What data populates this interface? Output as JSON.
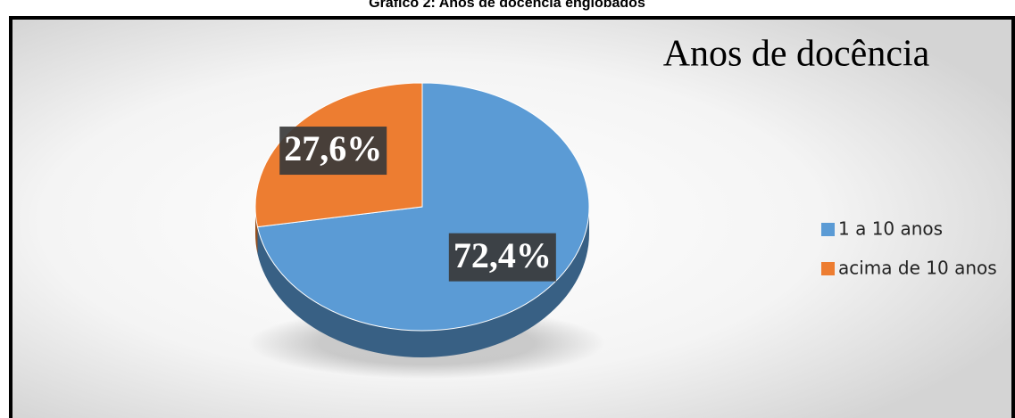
{
  "caption": "Gráfico 2: Anos de docência englobados",
  "chart_data": {
    "type": "pie",
    "title": "Anos de docência",
    "categories": [
      "1 a 10 anos",
      "acima de 10 anos"
    ],
    "values": [
      72.4,
      27.6
    ],
    "value_labels": [
      "72,4%",
      "27,6%"
    ],
    "colors": [
      "#5b9bd5",
      "#ed7d31"
    ],
    "legend": "right"
  }
}
